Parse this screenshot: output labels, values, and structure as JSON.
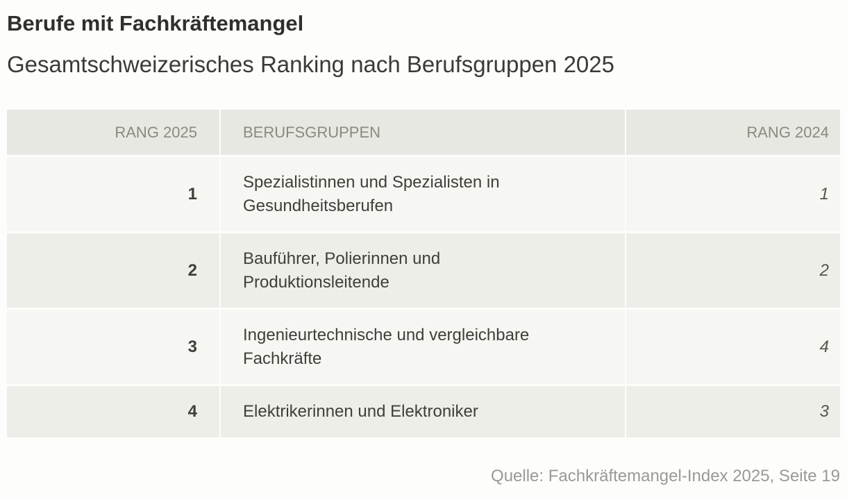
{
  "header": {
    "title": "Berufe mit Fachkräftemangel",
    "subtitle": "Gesamtschweizerisches Ranking nach Berufsgruppen 2025"
  },
  "table": {
    "columns": [
      "RANG 2025",
      "BERUFSGRUPPEN",
      "RANG 2024"
    ],
    "rows": [
      [
        1,
        "Spezialistinnen und Spezialisten in Gesundheitsberufen",
        1
      ],
      [
        2,
        "Bauführer, Polierinnen und Produktionsleitende",
        2
      ],
      [
        3,
        "Ingenieurtechnische und vergleichbare Fachkräfte",
        4
      ],
      [
        4,
        "Elektrikerinnen und Elektroniker",
        3
      ]
    ]
  },
  "footer": {
    "source": "Quelle: Fachkräftemangel-Index 2025, Seite 19"
  }
}
